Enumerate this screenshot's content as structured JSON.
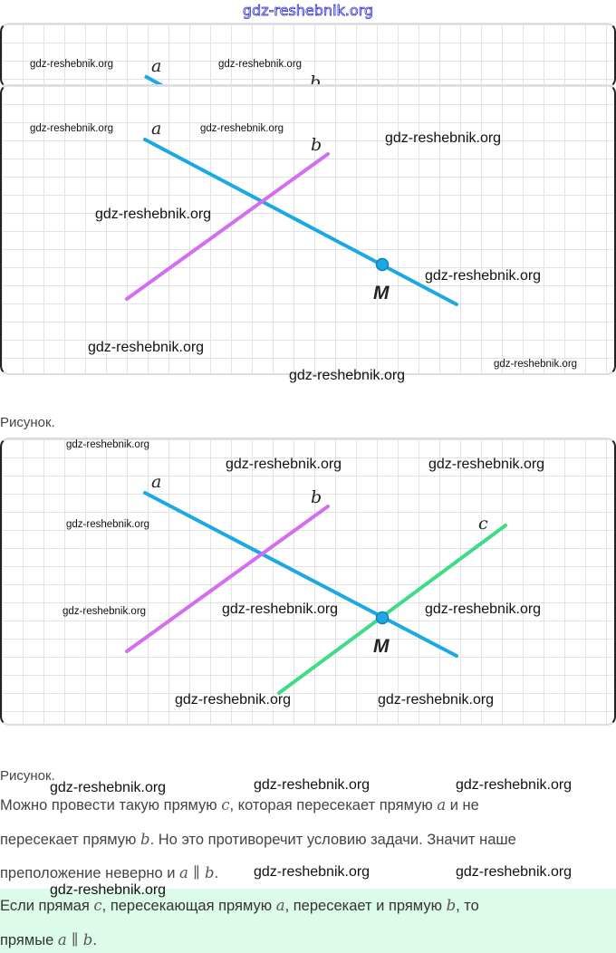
{
  "watermark": "gdz-reshebnik.org",
  "figure1": {
    "labels": {
      "a": "a",
      "b": "b",
      "m": "M"
    },
    "colors": {
      "a": "#1ba9e6",
      "b": "#d36ef0",
      "point": "#1ba9e6"
    }
  },
  "caption1": "Рисунок.",
  "figure2": {
    "labels": {
      "a": "a",
      "b": "b",
      "c": "c",
      "m": "M"
    },
    "colors": {
      "a": "#1ba9e6",
      "b": "#d36ef0",
      "c": "#3edc86",
      "point": "#1ba9e6"
    }
  },
  "caption2": "Рисунок.",
  "text": {
    "l1a": "Можно провести такую прямую ",
    "l1v1": "c",
    "l1b": ", которая пересекает прямую ",
    "l1v2": "a",
    "l1c": " и не",
    "l2a": "пересекает прямую ",
    "l2v": "b",
    "l2b": ". Но это противоречит условию задачи. Значит наше",
    "l3a": "преположение неверно и ",
    "l3v": "a ∥ b",
    "l3b": "."
  },
  "note": {
    "a": "Если прямая ",
    "v1": "c",
    "b": ", пересекающая прямую ",
    "v2": "a",
    "c": ", пересекает и прямую ",
    "v3": "b",
    "d": ", то",
    "e": "прямые ",
    "v4": "a ∥ b",
    "f": ".",
    "bg": "#dcfbe9"
  }
}
